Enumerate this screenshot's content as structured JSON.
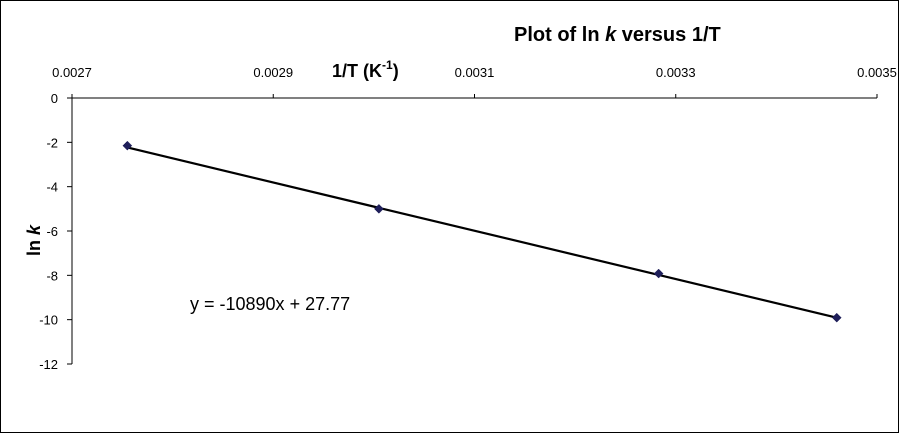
{
  "chart_data": {
    "type": "scatter",
    "title_parts": [
      "Plot of ln ",
      "k",
      " versus 1/T"
    ],
    "xlabel_parts": [
      "1/T (K",
      "-1",
      ")"
    ],
    "ylabel_parts": [
      "ln ",
      "k"
    ],
    "x_ticks": [
      "0.0027",
      "0.0029",
      "0.0031",
      "0.0033",
      "0.0035"
    ],
    "x_tick_values": [
      0.0027,
      0.0029,
      0.0031,
      0.0033,
      0.0035
    ],
    "y_ticks": [
      "0",
      "-2",
      "-4",
      "-6",
      "-8",
      "-10",
      "-12"
    ],
    "y_tick_values": [
      0,
      -2,
      -4,
      -6,
      -8,
      -10,
      -12
    ],
    "xlim": [
      0.0027,
      0.0035
    ],
    "ylim": [
      -12,
      0
    ],
    "x_axis_position": "top",
    "grid": false,
    "series": [
      {
        "points": [
          {
            "x": 0.002755,
            "y": -2.15
          },
          {
            "x": 0.003005,
            "y": -5.0
          },
          {
            "x": 0.003283,
            "y": -7.92
          },
          {
            "x": 0.00346,
            "y": -9.91
          }
        ]
      }
    ],
    "trendline": {
      "slope": -10890,
      "intercept": 27.77,
      "x_range": [
        0.002755,
        0.00346
      ]
    },
    "annotation": "y = -10890x + 27.77",
    "marker_color": "#1f1f5a",
    "line_color": "#000000"
  }
}
